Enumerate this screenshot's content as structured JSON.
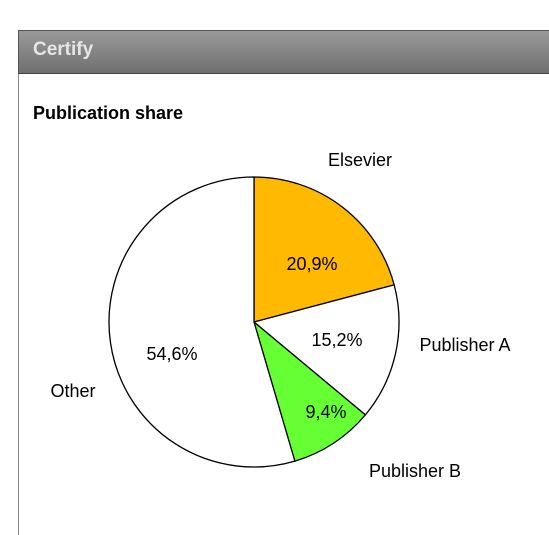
{
  "header": {
    "title": "Certify"
  },
  "chart_data": {
    "type": "pie",
    "title": "Publication share",
    "categories": [
      "Elsevier",
      "Publisher A",
      "Publisher B",
      "Other"
    ],
    "values": [
      20.9,
      15.2,
      9.4,
      54.6
    ],
    "value_labels": [
      "20,9%",
      "15,2%",
      "9,4%",
      "54,6%"
    ],
    "colors": [
      "#ffb900",
      "#ffffff",
      "#66ff33",
      "#ffffff"
    ]
  }
}
